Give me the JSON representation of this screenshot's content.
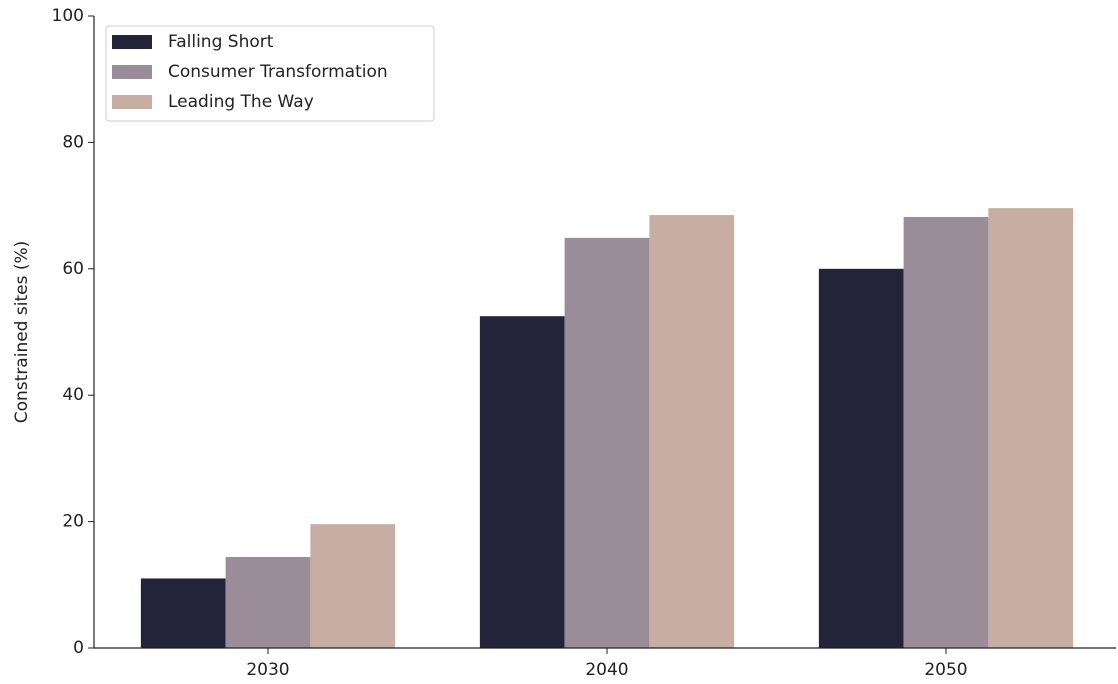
{
  "chart_data": {
    "type": "bar",
    "ylabel": "Constrained sites (%)",
    "categories": [
      "2030",
      "2040",
      "2050"
    ],
    "series": [
      {
        "name": "Falling Short",
        "color": "#23233a",
        "values": [
          11.0,
          52.5,
          60.0
        ]
      },
      {
        "name": "Consumer Transformation",
        "color": "#9b8c99",
        "values": [
          14.4,
          64.9,
          68.2
        ]
      },
      {
        "name": "Leading The Way",
        "color": "#c8ada3",
        "values": [
          19.6,
          68.5,
          69.6
        ]
      }
    ],
    "ylim": [
      0,
      100
    ],
    "yticks": [
      0,
      20,
      40,
      60,
      80,
      100
    ],
    "legend": "upper left"
  }
}
